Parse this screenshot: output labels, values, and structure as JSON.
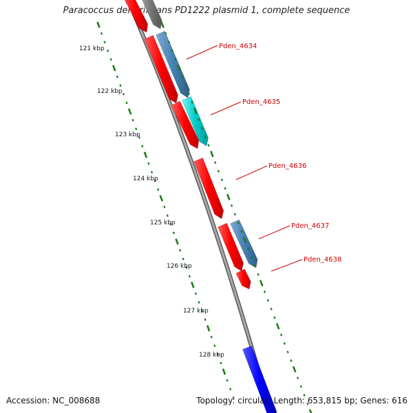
{
  "title": "Paracoccus denitrificans PD1222 plasmid 1, complete sequence",
  "footer": {
    "accession": "Accession: NC_008688",
    "summary": "Topology: circular; Length: 653,815 bp; Genes: 616"
  },
  "scale": {
    "ticks": [
      "121 kbp",
      "122 kbp",
      "123 kbp",
      "124 kbp",
      "125 kbp",
      "126 kbp",
      "127 kbp",
      "128 kbp"
    ]
  },
  "gene_labels": [
    "Pden_4634",
    "Pden_4635",
    "Pden_4636",
    "Pden_4637",
    "Pden_4638"
  ],
  "colors": {
    "backbone": "#888888",
    "cds_red": "#ff0000",
    "cds_steelblue": "#4682b4",
    "cds_cyan": "#00cccc",
    "cds_blue": "#0000ff",
    "cds_gray": "#777777",
    "label_red": "#cc0000",
    "tick_green": "#1a7a1a"
  }
}
